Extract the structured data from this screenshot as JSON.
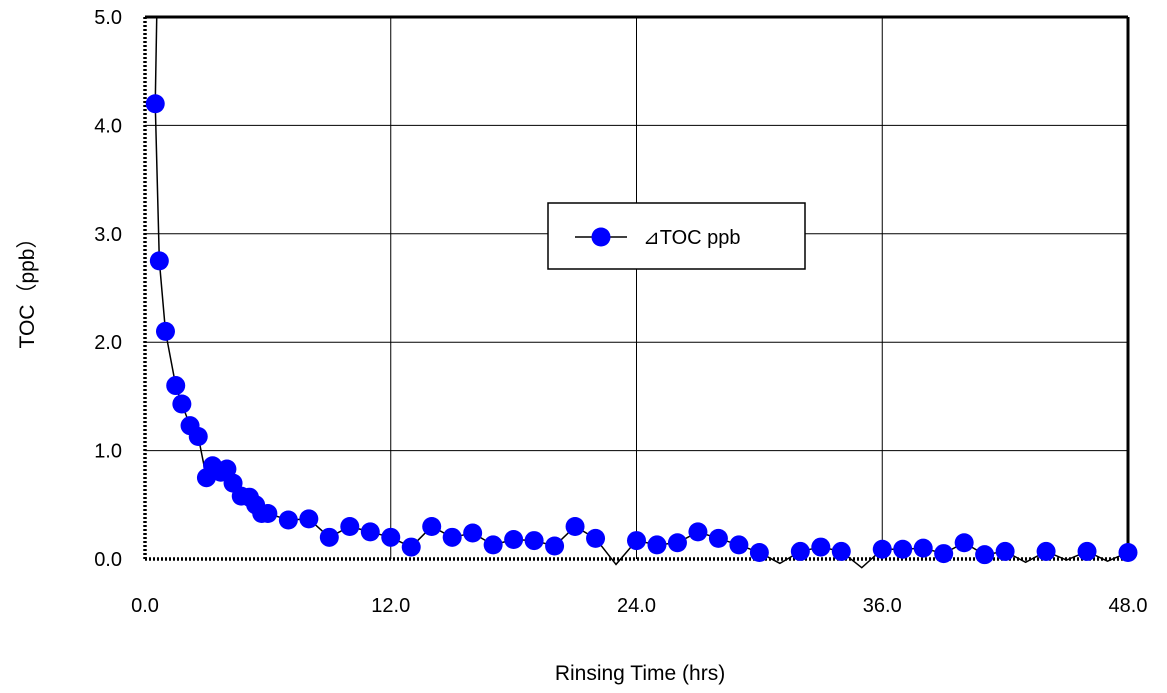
{
  "chart_data": {
    "type": "line",
    "xlabel": "Rinsing Time (hrs)",
    "ylabel": "TOC（ppb）",
    "xlim": [
      0,
      48
    ],
    "ylim": [
      0,
      5
    ],
    "x_ticks": [
      "0.0",
      "12.0",
      "24.0",
      "36.0",
      "48.0"
    ],
    "y_ticks": [
      "0.0",
      "1.0",
      "2.0",
      "3.0",
      "4.0",
      "5.0"
    ],
    "grid": true,
    "legend_position": "center-right",
    "marker_color": "#0000ff",
    "line_color": "#000000",
    "series": [
      {
        "name": "⊿TOC ppb",
        "x": [
          0.5,
          0.7,
          1.0,
          1.5,
          1.8,
          2.2,
          2.6,
          3.0,
          3.3,
          3.7,
          4.0,
          4.3,
          4.7,
          5.1,
          5.4,
          5.7,
          6.0,
          7.0,
          8.0,
          9.0,
          10.0,
          11.0,
          12.0,
          13.0,
          14.0,
          15.0,
          16.0,
          17.0,
          18.0,
          19.0,
          20.0,
          21.0,
          22.0,
          23.0,
          24.0,
          25.0,
          26.0,
          27.0,
          28.0,
          29.0,
          30.0,
          31.0,
          32.0,
          33.0,
          34.0,
          35.0,
          36.0,
          37.0,
          38.0,
          39.0,
          40.0,
          41.0,
          42.0,
          43.0,
          44.0,
          45.0,
          46.0,
          47.0,
          48.0
        ],
        "y": [
          4.2,
          2.75,
          2.1,
          1.6,
          1.43,
          1.23,
          1.13,
          0.75,
          0.86,
          0.8,
          0.83,
          0.7,
          0.58,
          0.57,
          0.5,
          0.42,
          0.42,
          0.36,
          0.37,
          0.2,
          0.3,
          0.25,
          0.2,
          0.11,
          0.3,
          0.2,
          0.24,
          0.13,
          0.18,
          0.17,
          0.12,
          0.3,
          0.19,
          -0.05,
          0.17,
          0.13,
          0.15,
          0.25,
          0.19,
          0.13,
          0.06,
          -0.04,
          0.07,
          0.11,
          0.07,
          -0.08,
          0.09,
          0.09,
          0.1,
          0.05,
          0.15,
          0.04,
          0.07,
          -0.03,
          0.07,
          -0.01,
          0.07,
          -0.02,
          0.06
        ],
        "marker_visible": [
          true,
          true,
          true,
          true,
          true,
          true,
          true,
          true,
          true,
          true,
          true,
          true,
          true,
          true,
          true,
          true,
          true,
          true,
          true,
          true,
          true,
          true,
          true,
          true,
          true,
          true,
          true,
          true,
          true,
          true,
          true,
          true,
          true,
          false,
          true,
          true,
          true,
          true,
          true,
          true,
          true,
          false,
          true,
          true,
          true,
          false,
          true,
          true,
          true,
          true,
          true,
          true,
          true,
          false,
          true,
          false,
          true,
          false,
          true
        ]
      }
    ]
  }
}
